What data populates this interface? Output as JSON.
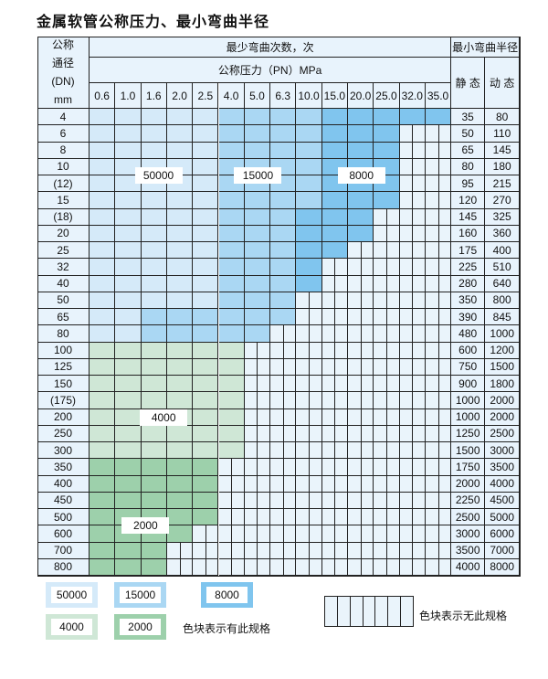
{
  "title": "金属软管公称压力、最小弯曲半径",
  "header": {
    "dn_label": [
      "公称",
      "通径",
      "(DN)",
      "mm"
    ],
    "cycles_label": "最少弯曲次数，次",
    "pressure_label": "公称压力（PN）MPa",
    "radius_label": "最小弯曲半径",
    "static_label": "静 态",
    "dynamic_label": "动 态",
    "pressures": [
      "0.6",
      "1.0",
      "1.6",
      "2.0",
      "2.5",
      "4.0",
      "5.0",
      "6.3",
      "10.0",
      "15.0",
      "20.0",
      "25.0",
      "32.0",
      "35.0"
    ]
  },
  "spec_colors": {
    "L": "#d5eaf9",
    "M": "#aad7f3",
    "D": "#80c5ee",
    "G": "#cfe7d6",
    "H": "#9dd0ab"
  },
  "spec_values": {
    "L": "50000",
    "M": "15000",
    "D": "8000",
    "G": "4000",
    "H": "2000"
  },
  "rows": [
    {
      "dn": "4",
      "static": "35",
      "dynamic": "80",
      "spec": "LLLLLMMMMDDDDD"
    },
    {
      "dn": "6",
      "static": "50",
      "dynamic": "110",
      "spec": "LLLLLMMMMDDDXX"
    },
    {
      "dn": "8",
      "static": "65",
      "dynamic": "145",
      "spec": "LLLLLMMMMDDDXX"
    },
    {
      "dn": "10",
      "static": "80",
      "dynamic": "180",
      "spec": "LLLLLMMMMDDDXX"
    },
    {
      "dn": "(12)",
      "static": "95",
      "dynamic": "215",
      "spec": "LLLLLMMMMDDDXX"
    },
    {
      "dn": "15",
      "static": "120",
      "dynamic": "270",
      "spec": "LLLLLMMMMDDDXX"
    },
    {
      "dn": "(18)",
      "static": "145",
      "dynamic": "325",
      "spec": "LLLLLMMMDDDXXX"
    },
    {
      "dn": "20",
      "static": "160",
      "dynamic": "360",
      "spec": "LLLLLMMMDDDXXX"
    },
    {
      "dn": "25",
      "static": "175",
      "dynamic": "400",
      "spec": "LLLLLMMMDDXXXX"
    },
    {
      "dn": "32",
      "static": "225",
      "dynamic": "510",
      "spec": "LLLLLMMMDXXXXX"
    },
    {
      "dn": "40",
      "static": "280",
      "dynamic": "640",
      "spec": "LLLLLMMMDXXXXX"
    },
    {
      "dn": "50",
      "static": "350",
      "dynamic": "800",
      "spec": "LLLLLMMMXXXXXX"
    },
    {
      "dn": "65",
      "static": "390",
      "dynamic": "845",
      "spec": "LLMMMMMMXXXXXX"
    },
    {
      "dn": "80",
      "static": "480",
      "dynamic": "1000",
      "spec": "LLMMMMMXXXXXXX"
    },
    {
      "dn": "100",
      "static": "600",
      "dynamic": "1200",
      "spec": "GGGGGGXXXXXXXX"
    },
    {
      "dn": "125",
      "static": "750",
      "dynamic": "1500",
      "spec": "GGGGGGXXXXXXXX"
    },
    {
      "dn": "150",
      "static": "900",
      "dynamic": "1800",
      "spec": "GGGGGGXXXXXXXX"
    },
    {
      "dn": "(175)",
      "static": "1000",
      "dynamic": "2000",
      "spec": "GGGGGGXXXXXXXX"
    },
    {
      "dn": "200",
      "static": "1000",
      "dynamic": "2000",
      "spec": "GGGGGGXXXXXXXX"
    },
    {
      "dn": "250",
      "static": "1250",
      "dynamic": "2500",
      "spec": "GGGGGGXXXXXXXX"
    },
    {
      "dn": "300",
      "static": "1500",
      "dynamic": "3000",
      "spec": "GGGGGGXXXXXXXX"
    },
    {
      "dn": "350",
      "static": "1750",
      "dynamic": "3500",
      "spec": "HHHHHXXXXXXXXX"
    },
    {
      "dn": "400",
      "static": "2000",
      "dynamic": "4000",
      "spec": "HHHHHXXXXXXXXX"
    },
    {
      "dn": "450",
      "static": "2250",
      "dynamic": "4500",
      "spec": "HHHHHXXXXXXXXX"
    },
    {
      "dn": "500",
      "static": "2500",
      "dynamic": "5000",
      "spec": "HHHHHXXXXXXXXX"
    },
    {
      "dn": "600",
      "static": "3000",
      "dynamic": "6000",
      "spec": "HHHHXXXXXXXXXX"
    },
    {
      "dn": "700",
      "static": "3500",
      "dynamic": "7000",
      "spec": "HHHXXXXXXXXXXX"
    },
    {
      "dn": "800",
      "static": "4000",
      "dynamic": "8000",
      "spec": "HHHXXXXXXXXXXX"
    }
  ],
  "region_labels": {
    "l": "50000",
    "m": "15000",
    "d": "8000",
    "g": "4000",
    "h": "2000"
  },
  "legend": {
    "items": [
      "50000",
      "15000",
      "8000",
      "4000",
      "2000"
    ],
    "available_note": "色块表示有此规格",
    "unavailable_note": "色块表示无此规格"
  }
}
